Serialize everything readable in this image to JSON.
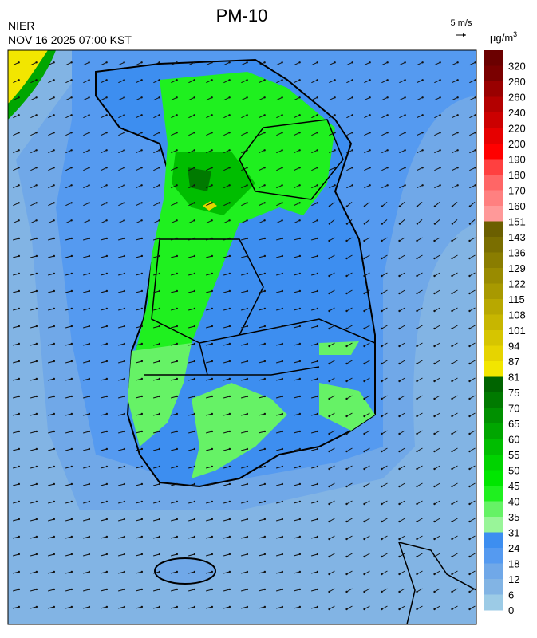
{
  "header": {
    "title": "PM-10",
    "agency": "NIER",
    "datetime": "NOV 16 2025 07:00 KST",
    "wind_scale": "5 m/s"
  },
  "colorbar": {
    "unit": "µg/m",
    "unit_sup": "3",
    "labels": [
      320,
      280,
      260,
      240,
      220,
      200,
      190,
      180,
      170,
      160,
      151,
      143,
      136,
      129,
      122,
      115,
      108,
      101,
      94,
      87,
      81,
      75,
      70,
      65,
      60,
      55,
      50,
      45,
      40,
      35,
      31,
      24,
      18,
      12,
      6,
      0
    ],
    "colors": [
      "#6b0000",
      "#7a0000",
      "#990000",
      "#b30000",
      "#cc0000",
      "#e60000",
      "#ff0000",
      "#ff4040",
      "#ff6666",
      "#ff8080",
      "#ff9999",
      "#6b5f00",
      "#7a6e00",
      "#8a7d00",
      "#998b00",
      "#a89900",
      "#b8a800",
      "#c7b600",
      "#d6c500",
      "#e6d400",
      "#f2e600",
      "#006400",
      "#007a00",
      "#009000",
      "#00a600",
      "#00bd00",
      "#00d300",
      "#00e600",
      "#1ff01f",
      "#66f266",
      "#99f599",
      "#3d8ef0",
      "#559af0",
      "#70a8e8",
      "#82b4e4",
      "#9ccbe6"
    ]
  }
}
